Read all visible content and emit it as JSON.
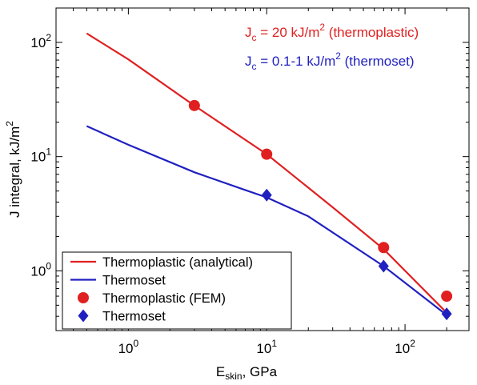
{
  "chart_data": {
    "type": "line",
    "x_scale": "log",
    "y_scale": "log",
    "xlim": [
      0.3,
      290
    ],
    "ylim": [
      0.3,
      200
    ],
    "xlabel": {
      "main": "E",
      "sub": "skin",
      "rest": ", GPa"
    },
    "ylabel": {
      "main": "J integral, kJ/m",
      "sup": "2"
    },
    "x_ticks": [
      {
        "value": 1,
        "base": "10",
        "exp": "0"
      },
      {
        "value": 10,
        "base": "10",
        "exp": "1"
      },
      {
        "value": 100,
        "base": "10",
        "exp": "2"
      }
    ],
    "y_ticks": [
      {
        "value": 1,
        "base": "10",
        "exp": "0"
      },
      {
        "value": 10,
        "base": "10",
        "exp": "1"
      },
      {
        "value": 100,
        "base": "10",
        "exp": "2"
      }
    ],
    "colors": {
      "thermoplastic": "#e02020",
      "thermoset": "#2020c0"
    },
    "annotations": [
      {
        "color": "#e02020",
        "pre": "J",
        "sub": "c",
        "mid": " = 20 kJ/m",
        "sup": "2",
        "post": " (thermoplastic)",
        "x": 0.1,
        "y": 1
      },
      {
        "color": "#2020c0",
        "pre": "J",
        "sub": "c",
        "mid": " = 0.1-1 kJ/m",
        "sup": "2",
        "post": " (thermoset)",
        "x": 0.1,
        "y": 2
      }
    ],
    "series": [
      {
        "name": "Thermoplastic (analytical)",
        "kind": "line",
        "color": "#e02020",
        "x": [
          0.5,
          1,
          3,
          10,
          30,
          70,
          200
        ],
        "y": [
          120,
          71,
          28,
          10.5,
          3.6,
          1.55,
          0.43
        ]
      },
      {
        "name": "Thermoset",
        "kind": "line",
        "color": "#2020c0",
        "x": [
          0.5,
          1,
          3,
          7,
          10,
          20,
          70,
          200
        ],
        "y": [
          18.5,
          12.7,
          7.3,
          5.1,
          4.4,
          3.0,
          1.1,
          0.41
        ]
      },
      {
        "name": "Thermoplastic (FEM)",
        "kind": "marker-circle",
        "color": "#e02020",
        "x": [
          3,
          10,
          70,
          200
        ],
        "y": [
          28,
          10.5,
          1.6,
          0.6
        ]
      },
      {
        "name": "Thermoset",
        "kind": "marker-diamond",
        "color": "#2020c0",
        "x": [
          10,
          70,
          200
        ],
        "y": [
          4.6,
          1.1,
          0.42
        ]
      }
    ],
    "legend": {
      "placement": "bottom-left"
    }
  }
}
